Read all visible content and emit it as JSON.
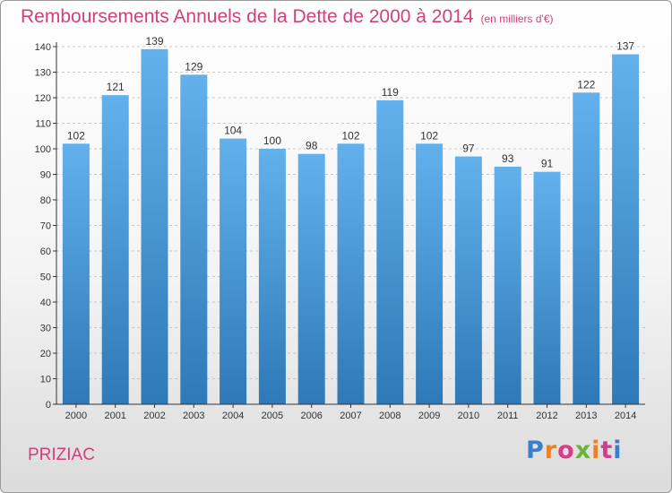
{
  "title": "Remboursements Annuels de la Dette de 2000 à 2014",
  "unit": "(en milliers d'€)",
  "commune": "PRIZIAC",
  "logo": {
    "text": "Proxiti",
    "letter_colors": [
      "#3a7fc8",
      "#e8822a",
      "#d63c8c",
      "#6ab43e",
      "#e8822a",
      "#d63c8c",
      "#3a7fc8"
    ]
  },
  "colors": {
    "accent": "#d1407b",
    "bar_top": "#62b1ec",
    "bar_bottom": "#2e79b7",
    "grid": "#c8c8c8",
    "axis": "#333333"
  },
  "chart_data": {
    "type": "bar",
    "categories": [
      "2000",
      "2001",
      "2002",
      "2003",
      "2004",
      "2005",
      "2006",
      "2007",
      "2008",
      "2009",
      "2010",
      "2011",
      "2012",
      "2013",
      "2014"
    ],
    "values": [
      102,
      121,
      139,
      129,
      104,
      100,
      98,
      102,
      119,
      102,
      97,
      93,
      91,
      122,
      137
    ],
    "ylim": [
      0,
      140
    ],
    "yticks": [
      0,
      10,
      20,
      30,
      40,
      50,
      60,
      70,
      80,
      90,
      100,
      110,
      120,
      130,
      140
    ],
    "grid": true,
    "data_labels": true
  }
}
